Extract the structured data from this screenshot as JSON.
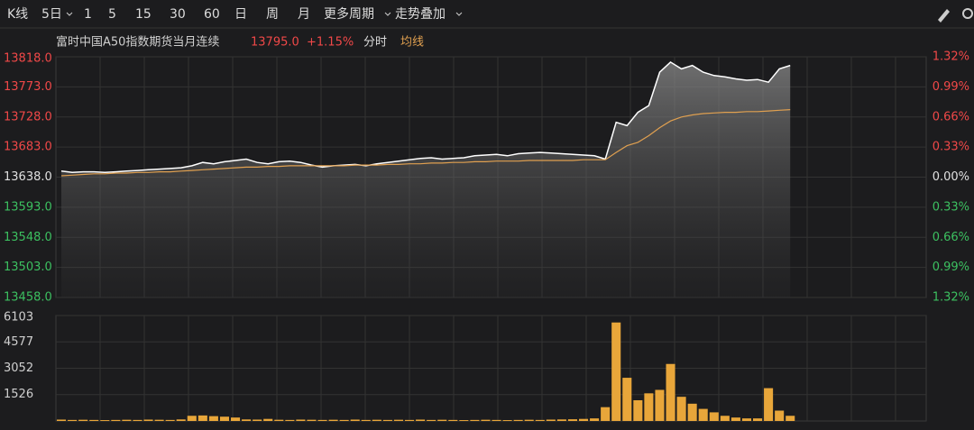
{
  "toolbar": {
    "items": [
      "K线",
      "5日",
      "1",
      "5",
      "15",
      "30",
      "60",
      "日",
      "周",
      "月",
      "更多周期",
      "走势叠加"
    ]
  },
  "legend": {
    "price": "13795.0",
    "change": "+1.15%"
  },
  "chart_data": [
    {
      "type": "line",
      "title": "富时中国A50指数期货当月连续",
      "categories": [
        null,
        null,
        null,
        null,
        null,
        null,
        null,
        null,
        null,
        null,
        null,
        null,
        null,
        null,
        null,
        null,
        null,
        null,
        null,
        null,
        null,
        null,
        null,
        null,
        null,
        null,
        null,
        null,
        null,
        null,
        null,
        null,
        null,
        null,
        null,
        null,
        null,
        null,
        null,
        null,
        null,
        null,
        null,
        null,
        null,
        null,
        null,
        null,
        null,
        null,
        null,
        null,
        null,
        null,
        null,
        null,
        null,
        null,
        null,
        null,
        null,
        null,
        null,
        null,
        null,
        null,
        null,
        null,
        null,
        null,
        null,
        null,
        null,
        null,
        null,
        null,
        null,
        null,
        null,
        null
      ],
      "series": [
        {
          "name": "分时",
          "color": "#ffffff",
          "values": [
            13647,
            13645,
            13646,
            13646,
            13645,
            13646,
            13647,
            13648,
            13649,
            13650,
            13651,
            13652,
            13655,
            13660,
            13658,
            13661,
            13663,
            13665,
            13660,
            13658,
            13661,
            13662,
            13660,
            13656,
            13653,
            13655,
            13656,
            13657,
            13655,
            13658,
            13660,
            13662,
            13664,
            13666,
            13667,
            13665,
            13666,
            13667,
            13670,
            13671,
            13672,
            13670,
            13673,
            13674,
            13675,
            13674,
            13673,
            13672,
            13671,
            13670,
            13665,
            13720,
            13715,
            13735,
            13745,
            13795,
            13810,
            13800,
            13805,
            13795,
            13790,
            13788,
            13785,
            13783,
            13784,
            13780,
            13800,
            13805,
            null,
            null,
            null,
            null,
            null,
            null,
            null,
            null,
            null,
            null,
            null,
            null
          ]
        },
        {
          "name": "均线",
          "color": "#e0a050",
          "values": [
            13640,
            13641,
            13642,
            13643,
            13643,
            13644,
            13644,
            13645,
            13645,
            13646,
            13646,
            13647,
            13648,
            13649,
            13650,
            13651,
            13652,
            13653,
            13653,
            13654,
            13654,
            13655,
            13655,
            13655,
            13655,
            13655,
            13655,
            13656,
            13656,
            13656,
            13657,
            13657,
            13658,
            13658,
            13659,
            13659,
            13660,
            13660,
            13661,
            13661,
            13662,
            13662,
            13662,
            13663,
            13663,
            13663,
            13663,
            13663,
            13664,
            13664,
            13664,
            13675,
            13685,
            13690,
            13700,
            13712,
            13722,
            13728,
            13731,
            13733,
            13734,
            13735,
            13735,
            13736,
            13736,
            13737,
            13738,
            13739,
            null,
            null,
            null,
            null,
            null,
            null,
            null,
            null,
            null,
            null,
            null,
            null
          ]
        }
      ],
      "ylim": [
        13458,
        13818
      ],
      "yticks": [
        {
          "value": 13458,
          "label": "13458.0"
        },
        {
          "value": 13503,
          "label": "13503.0"
        },
        {
          "value": 13548,
          "label": "13548.0"
        },
        {
          "value": 13593,
          "label": "13593.0"
        },
        {
          "value": 13638,
          "label": "13638.0"
        },
        {
          "value": 13683,
          "label": "13683.0"
        },
        {
          "value": 13728,
          "label": "13728.0"
        },
        {
          "value": 13773,
          "label": "13773.0"
        },
        {
          "value": 13818,
          "label": "13818.0"
        }
      ],
      "y2lim": [
        -1.32,
        1.32
      ],
      "y2ticks": [
        {
          "value": -1.32,
          "label": "1.32%"
        },
        {
          "value": -0.99,
          "label": "0.99%"
        },
        {
          "value": -0.66,
          "label": "0.66%"
        },
        {
          "value": -0.33,
          "label": "0.33%"
        },
        {
          "value": 0,
          "label": "0.00%"
        },
        {
          "value": 0.33,
          "label": "0.33%"
        },
        {
          "value": 0.66,
          "label": "0.66%"
        },
        {
          "value": 0.99,
          "label": "0.99%"
        },
        {
          "value": 1.32,
          "label": "1.32%"
        }
      ],
      "grid": true
    },
    {
      "type": "bar",
      "categories": [
        null,
        null,
        null,
        null,
        null,
        null,
        null,
        null,
        null,
        null,
        null,
        null,
        null,
        null,
        null,
        null,
        null,
        null,
        null,
        null,
        null,
        null,
        null,
        null,
        null,
        null,
        null,
        null,
        null,
        null,
        null,
        null,
        null,
        null,
        null,
        null,
        null,
        null,
        null,
        null,
        null,
        null,
        null,
        null,
        null,
        null,
        null,
        null,
        null,
        null,
        null,
        null,
        null,
        null,
        null,
        null,
        null,
        null,
        null,
        null,
        null,
        null,
        null,
        null,
        null,
        null,
        null,
        null,
        null,
        null,
        null,
        null,
        null,
        null,
        null,
        null,
        null,
        null,
        null,
        null
      ],
      "values": [
        80,
        60,
        70,
        60,
        50,
        60,
        70,
        60,
        80,
        70,
        60,
        90,
        300,
        320,
        280,
        250,
        200,
        90,
        80,
        120,
        70,
        60,
        80,
        70,
        60,
        70,
        60,
        80,
        60,
        70,
        60,
        70,
        60,
        80,
        60,
        70,
        60,
        50,
        60,
        70,
        60,
        50,
        60,
        70,
        60,
        80,
        90,
        100,
        120,
        150,
        800,
        5700,
        2500,
        1200,
        1600,
        1800,
        3300,
        1400,
        1000,
        700,
        500,
        300,
        200,
        150,
        150,
        1900,
        600,
        300,
        null,
        null,
        null,
        null,
        null,
        null,
        null,
        null,
        null,
        null,
        null,
        null
      ],
      "color": "#e8a63a",
      "ylim": [
        0,
        6103
      ],
      "yticks": [
        1526,
        3052,
        4577,
        6103
      ]
    }
  ]
}
